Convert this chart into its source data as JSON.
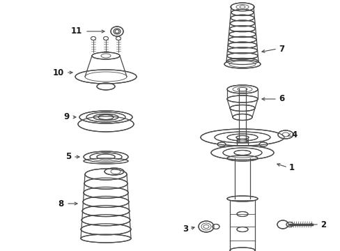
{
  "background_color": "#ffffff",
  "line_color": "#4a4a4a",
  "label_color": "#1a1a1a",
  "fig_width": 4.89,
  "fig_height": 3.6,
  "dpi": 100
}
